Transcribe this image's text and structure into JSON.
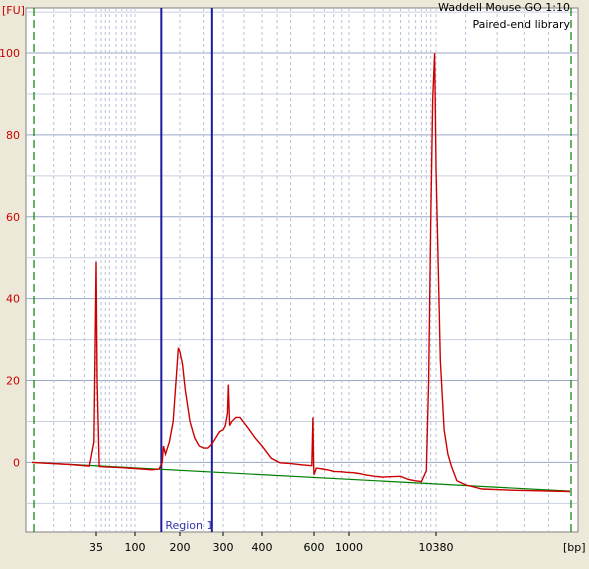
{
  "chart_data": {
    "type": "line",
    "title": "Waddell Mouse GO 1:10",
    "subtitle": "Paired-end library",
    "ylabel": "[FU]",
    "xlabel": "[bp]",
    "ylim": [
      -17,
      111
    ],
    "yticks": [
      0,
      20,
      40,
      60,
      80,
      100
    ],
    "xscale": "log-like (electropherogram sizing)",
    "xlim": [
      15,
      20000
    ],
    "xticks": [
      35,
      100,
      200,
      300,
      400,
      600,
      1000,
      10380
    ],
    "xtick_labels": [
      "35",
      "100",
      "200",
      "300",
      "400",
      "600",
      "1000",
      "10380"
    ],
    "grid": true,
    "region": {
      "label": "Region 1",
      "x_start": 150,
      "x_end": 270
    },
    "series": [
      {
        "color": "#cc0000",
        "x": [
          15,
          25,
          32,
          34,
          35,
          36,
          38,
          45,
          60,
          100,
          130,
          145,
          152,
          155,
          160,
          170,
          180,
          190,
          195,
          200,
          205,
          210,
          220,
          230,
          240,
          250,
          260,
          270,
          280,
          290,
          300,
          305,
          310,
          312,
          315,
          320,
          330,
          340,
          360,
          380,
          400,
          430,
          460,
          500,
          550,
          590,
          595,
          598,
          600,
          605,
          620,
          680,
          750,
          800,
          900,
          1000,
          1100,
          1300,
          1600,
          2000,
          2500,
          3000,
          4000,
          5000,
          6000,
          7000,
          8000,
          8500,
          9000,
          9500,
          10000,
          10380,
          10600,
          10800,
          11000,
          11200,
          11500,
          12000,
          13000,
          15000,
          20000
        ],
        "values": [
          0,
          -0.5,
          -0.9,
          5,
          49,
          20,
          -1,
          -1.1,
          -1.2,
          -1.5,
          -1.8,
          -1.6,
          0,
          4,
          2,
          5,
          10,
          22,
          28,
          27,
          24,
          18,
          10,
          6,
          4,
          3.5,
          3.5,
          4.5,
          6,
          7.5,
          8,
          9,
          12,
          19,
          9,
          10,
          11,
          11,
          8.5,
          6,
          4,
          1,
          -0.1,
          -0.3,
          -0.6,
          -0.8,
          11,
          -0.5,
          -3,
          -2.6,
          -1.4,
          -1.6,
          -1.9,
          -2.2,
          -2.3,
          -2.5,
          -2.5,
          -2.7,
          -3.1,
          -3.4,
          -3.6,
          -3.5,
          -3.4,
          -4.2,
          -4.5,
          -4.7,
          -2,
          20,
          59,
          89,
          100,
          72,
          25,
          8,
          2,
          -1,
          -4.5,
          -5.5,
          -6.5,
          -6.8,
          -7.1
        ]
      },
      {
        "color": "#008000",
        "x": [
          15,
          20000
        ],
        "values": [
          0,
          -7
        ]
      }
    ]
  }
}
